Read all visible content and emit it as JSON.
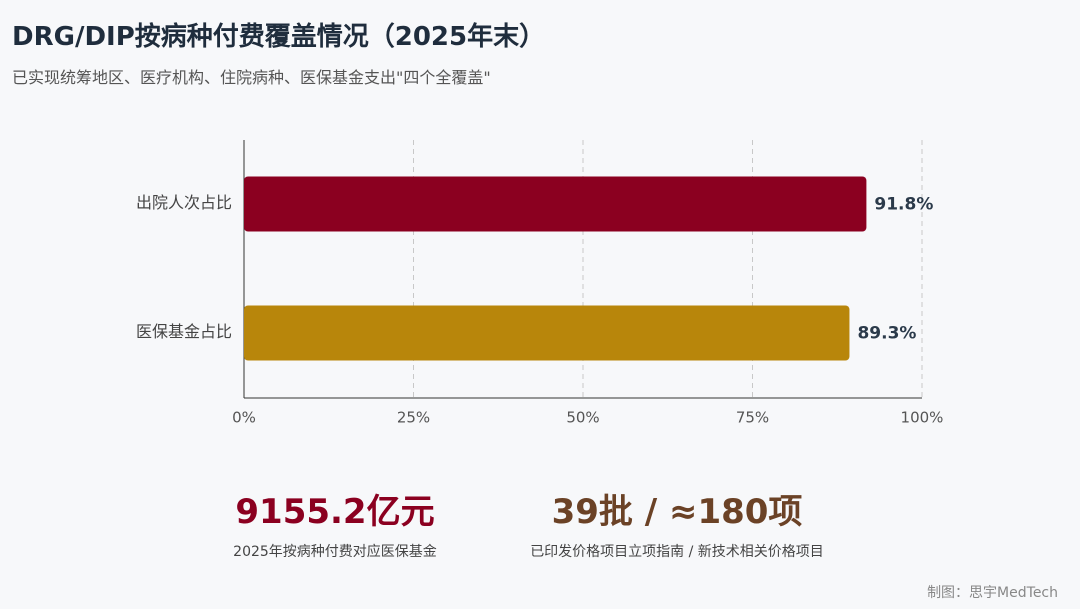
{
  "header": {
    "title": "DRG/DIP按病种付费覆盖情况（2025年末）",
    "subtitle": "已实现统筹地区、医疗机构、住院病种、医保基金支出\"四个全覆盖\""
  },
  "chart_data": {
    "type": "bar",
    "orientation": "horizontal",
    "categories": [
      "出院人次占比",
      "医保基金占比"
    ],
    "values": [
      91.8,
      89.3
    ],
    "value_labels": [
      "91.8%",
      "89.3%"
    ],
    "colors": [
      "#8b0020",
      "#b8860b"
    ],
    "xlim": [
      0,
      100
    ],
    "xticks": [
      {
        "value": 0,
        "label": "0%"
      },
      {
        "value": 25,
        "label": "25%"
      },
      {
        "value": 50,
        "label": "50%"
      },
      {
        "value": 75,
        "label": "75%"
      },
      {
        "value": 100,
        "label": "100%"
      }
    ],
    "grid": true
  },
  "stats": [
    {
      "value": "9155.2亿元",
      "caption": "2025年按病种付费对应医保基金"
    },
    {
      "value": "39批 / ≈180项",
      "caption": "已印发价格项目立项指南 / 新技术相关价格项目"
    }
  ],
  "footer": {
    "credit": "制图：思宇MedTech"
  }
}
